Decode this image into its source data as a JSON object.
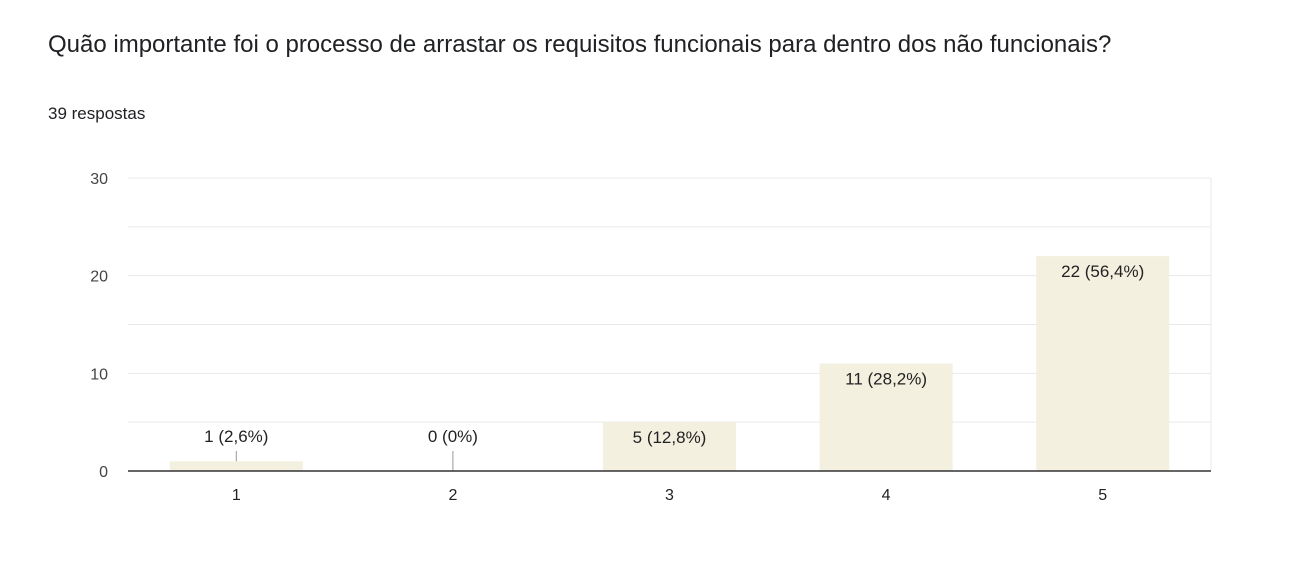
{
  "header": {
    "question": "Quão importante foi o processo de arrastar os requisitos funcionais para dentro dos não funcionais?",
    "responses": "39 respostas"
  },
  "colors": {
    "bar": "#f3f0e0",
    "grid": "#e9e9e9",
    "axis": "#333333",
    "leader": "#999999"
  },
  "chart_data": {
    "type": "bar",
    "categories": [
      "1",
      "2",
      "3",
      "4",
      "5"
    ],
    "values": [
      1,
      0,
      5,
      11,
      22
    ],
    "data_labels": [
      "1 (2,6%)",
      "0 (0%)",
      "5 (12,8%)",
      "11 (28,2%)",
      "22 (56,4%)"
    ],
    "y_ticks": [
      "0",
      "10",
      "20",
      "30"
    ],
    "ylim": [
      0,
      30
    ],
    "grid": true
  }
}
